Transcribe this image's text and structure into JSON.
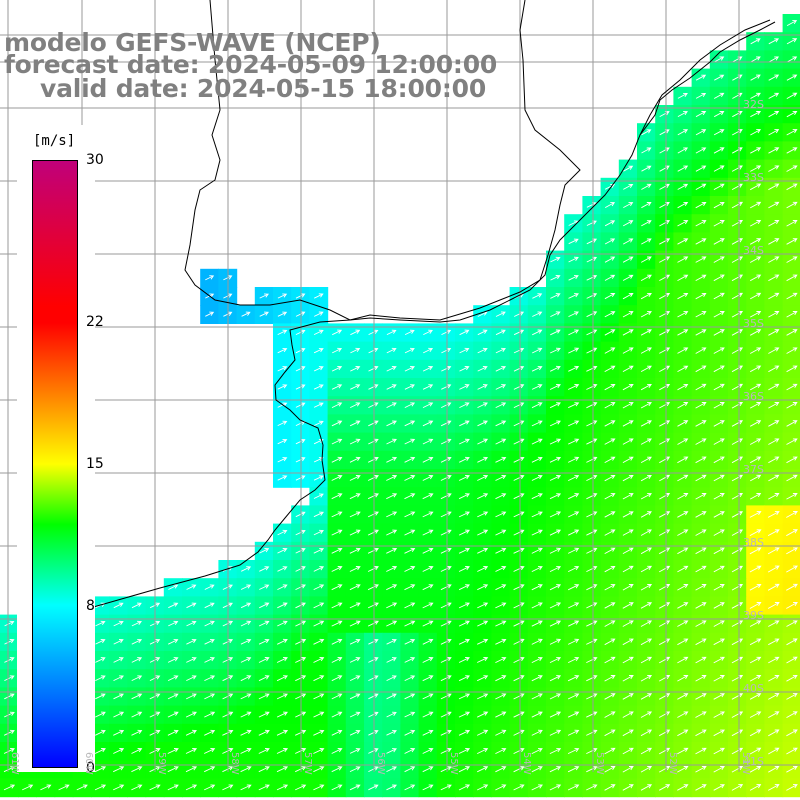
{
  "title": {
    "line1": "modelo GEFS-WAVE (NCEP)",
    "line2": "forecast date: 2024-05-09 12:00:00",
    "line3": "valid date: 2024-05-15 18:00:00"
  },
  "colorbar": {
    "unit": "[m/s]",
    "min": 0,
    "max": 30,
    "ticks": [
      "30",
      "22",
      "15",
      "8",
      "0"
    ],
    "tick_values": [
      30,
      22,
      15,
      8,
      0
    ],
    "colors": {
      "0": "#0000ff",
      "8": "#00ffff",
      "12": "#00ff00",
      "15": "#ffff00",
      "22": "#ff0000",
      "30": "#c0007a"
    }
  },
  "map": {
    "lat_labels": [
      "32S",
      "33S",
      "34S",
      "35S",
      "36S",
      "37S",
      "38S",
      "39S",
      "40S",
      "41S"
    ],
    "lon_labels": [
      "61W",
      "60W",
      "59W",
      "58W",
      "57W",
      "56W",
      "55W",
      "54W",
      "53W",
      "52W",
      "51W"
    ],
    "lat_range": [
      -41.2,
      -30.6
    ],
    "lon_range": [
      -61.2,
      -50.2
    ],
    "grid_color": "#9a9a9a",
    "land_color": "#ffffff",
    "arrow_color": "#ffffff",
    "arrow_direction": "towards north-east",
    "field": "wind speed with direction arrows"
  }
}
